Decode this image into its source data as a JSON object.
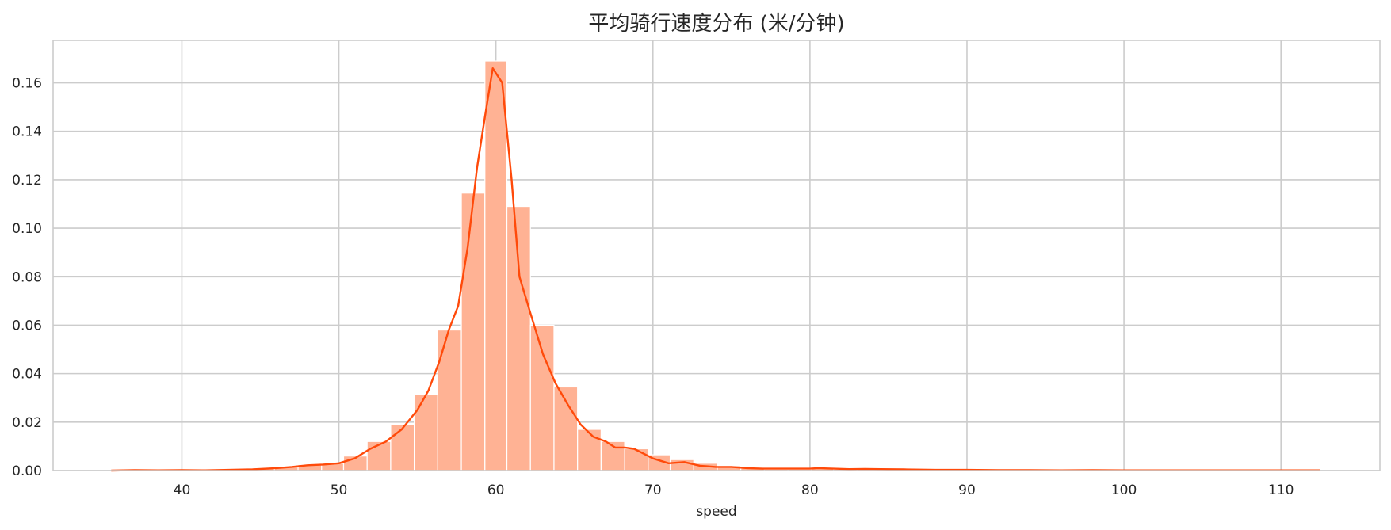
{
  "chart_data": {
    "type": "bar",
    "title": "平均骑行速度分布 (米/分钟)",
    "xlabel": "speed",
    "ylabel": "",
    "xlim": [
      31.8,
      116.3
    ],
    "ylim": [
      0,
      0.1775
    ],
    "xticks": [
      40,
      50,
      60,
      70,
      80,
      90,
      100,
      110
    ],
    "yticks": [
      0.0,
      0.02,
      0.04,
      0.06,
      0.08,
      0.1,
      0.12,
      0.14,
      0.16
    ],
    "ytick_labels": [
      "0.00",
      "0.02",
      "0.04",
      "0.06",
      "0.08",
      "0.10",
      "0.12",
      "0.14",
      "0.16"
    ],
    "grid": true,
    "colors": {
      "histogram": "#ffb294",
      "kde": "#ff4a0a",
      "grid": "#cccccc",
      "text": "#262626"
    },
    "histogram": {
      "bin_edges": [
        35.5,
        37.0,
        38.5,
        40.0,
        41.4,
        42.9,
        44.4,
        45.9,
        47.4,
        48.9,
        50.3,
        51.8,
        53.3,
        54.8,
        56.3,
        57.8,
        59.3,
        60.7,
        62.2,
        63.7,
        65.2,
        66.7,
        68.2,
        69.7,
        71.1,
        72.6,
        74.1,
        75.6,
        77.1,
        78.6,
        80.1,
        81.5,
        83.0,
        84.5,
        86.0,
        87.5,
        89.0,
        90.4,
        91.9,
        93.4,
        94.9,
        96.4,
        97.9,
        99.4,
        100.8,
        102.3,
        103.8,
        105.3,
        106.8,
        108.3,
        109.8,
        111.2,
        112.7
      ],
      "densities": [
        0.0,
        0.0,
        0.0,
        0.0,
        0.0,
        0.0005,
        0.001,
        0.0015,
        0.0025,
        0.003,
        0.006,
        0.012,
        0.019,
        0.0315,
        0.058,
        0.1145,
        0.169,
        0.109,
        0.06,
        0.0345,
        0.017,
        0.012,
        0.009,
        0.0065,
        0.0045,
        0.003,
        0.002,
        0.001,
        0.0005,
        0.0005,
        0.0008,
        0.0005,
        0.0005,
        0.0003,
        0.0002,
        0.0002,
        0.0002,
        0.0001,
        0.0001,
        0.0001,
        0.0,
        0.0,
        0.0,
        0.0,
        0.0,
        0.0,
        0.0,
        0.0,
        0.0,
        0.0,
        0.0,
        0.0
      ]
    },
    "kde": {
      "x": [
        35.5,
        37.0,
        38.5,
        40.0,
        41.5,
        43.0,
        44.5,
        46.0,
        47.0,
        48.0,
        49.0,
        50.0,
        51.0,
        52.0,
        53.0,
        54.0,
        55.0,
        55.7,
        56.4,
        57.0,
        57.6,
        58.2,
        58.8,
        59.3,
        59.8,
        60.4,
        61.0,
        61.5,
        62.2,
        63.0,
        63.8,
        64.6,
        65.4,
        66.2,
        67.0,
        67.6,
        68.2,
        68.8,
        69.4,
        70.0,
        71.0,
        72.0,
        73.0,
        74.0,
        75.0,
        76.0,
        77.0,
        78.0,
        79.0,
        80.0,
        80.5,
        81.5,
        82.5,
        83.5,
        84.5,
        86.0,
        88.0,
        90.0,
        92.0,
        94.0,
        96.0,
        98.0,
        100.0,
        102.0,
        104.0,
        106.0,
        108.0,
        110.0,
        112.5
      ],
      "y": [
        0.0,
        0.0002,
        0.0001,
        0.0002,
        0.0001,
        0.0003,
        0.0005,
        0.001,
        0.0015,
        0.0022,
        0.0025,
        0.003,
        0.005,
        0.009,
        0.012,
        0.017,
        0.025,
        0.033,
        0.045,
        0.058,
        0.068,
        0.092,
        0.125,
        0.146,
        0.166,
        0.16,
        0.12,
        0.08,
        0.065,
        0.048,
        0.036,
        0.027,
        0.019,
        0.014,
        0.012,
        0.0095,
        0.0095,
        0.009,
        0.007,
        0.005,
        0.003,
        0.0035,
        0.002,
        0.0015,
        0.0015,
        0.001,
        0.0008,
        0.0008,
        0.0008,
        0.0008,
        0.001,
        0.0008,
        0.0006,
        0.0007,
        0.0006,
        0.0005,
        0.0003,
        0.0003,
        0.0002,
        0.0002,
        0.0001,
        0.0002,
        0.0001,
        0.0001,
        0.0001,
        0.0001,
        0.0001,
        0.0001,
        0.0001
      ]
    }
  }
}
